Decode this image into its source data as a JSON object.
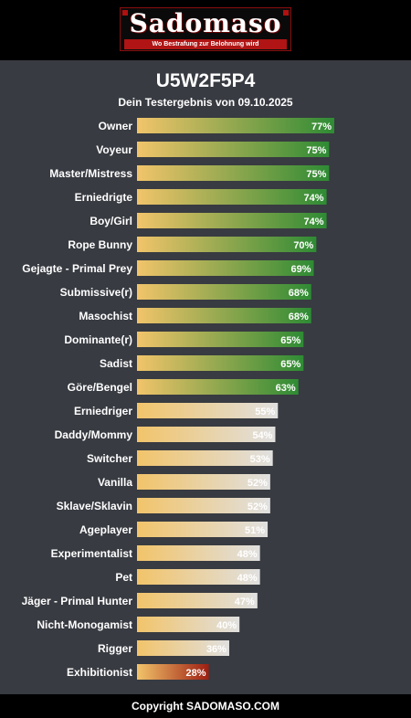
{
  "header": {
    "logo_text": "Sadomaso",
    "logo_tagline": "Wo Bestrafung zur Belohnung wird"
  },
  "result": {
    "code": "U5W2F5P4",
    "subtitle": "Dein Testergebnis von 09.10.2025"
  },
  "chart_data": {
    "type": "bar",
    "orientation": "horizontal",
    "title": "U5W2F5P4",
    "subtitle": "Dein Testergebnis von 09.10.2025",
    "xlim": [
      0,
      100
    ],
    "grid": false,
    "legend": "none",
    "value_suffix": "%",
    "categories": [
      "Owner",
      "Voyeur",
      "Master/Mistress",
      "Erniedrigte",
      "Boy/Girl",
      "Rope Bunny",
      "Gejagte - Primal Prey",
      "Submissive(r)",
      "Masochist",
      "Dominante(r)",
      "Sadist",
      "Göre/Bengel",
      "Erniedriger",
      "Daddy/Mommy",
      "Switcher",
      "Vanilla",
      "Sklave/Sklavin",
      "Ageplayer",
      "Experimentalist",
      "Pet",
      "Jäger - Primal Hunter",
      "Nicht-Monogamist",
      "Rigger",
      "Exhibitionist"
    ],
    "values": [
      77,
      75,
      75,
      74,
      74,
      70,
      69,
      68,
      68,
      65,
      65,
      63,
      55,
      54,
      53,
      52,
      52,
      51,
      48,
      48,
      47,
      40,
      36,
      28
    ],
    "colors": {
      "start": "#f2c46a",
      "high_end": "#2e8b34",
      "mid_end": "#e0e0e0",
      "low_end": "#9e1e12"
    }
  },
  "footer": {
    "copyright": "Copyright SADOMASO.COM"
  }
}
